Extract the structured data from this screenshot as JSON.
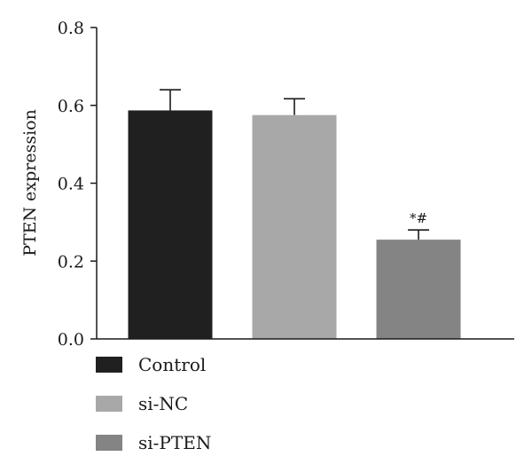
{
  "chart_data": {
    "type": "bar",
    "categories": [
      "Control",
      "si-NC",
      "si-PTEN"
    ],
    "series": [
      {
        "values": [
          0.587,
          0.575,
          0.255
        ],
        "errors": [
          0.053,
          0.042,
          0.025
        ],
        "colors": [
          "#202020",
          "#a8a8a8",
          "#848484"
        ]
      }
    ],
    "title": "",
    "xlabel": "",
    "ylabel": "PTEN expression",
    "ylim": [
      0,
      0.8
    ],
    "yticks": [
      0.0,
      0.2,
      0.4,
      0.6,
      0.8
    ],
    "ytick_labels": [
      "0.0",
      "0.2",
      "0.4",
      "0.6",
      "0.8"
    ],
    "grid": false,
    "annotations": [
      {
        "category": "si-PTEN",
        "text": "*#"
      }
    ],
    "legend": {
      "position": "bottom-left",
      "entries": [
        {
          "label": "Control",
          "color": "#202020"
        },
        {
          "label": "si-NC",
          "color": "#a8a8a8"
        },
        {
          "label": "si-PTEN",
          "color": "#848484"
        }
      ]
    }
  }
}
